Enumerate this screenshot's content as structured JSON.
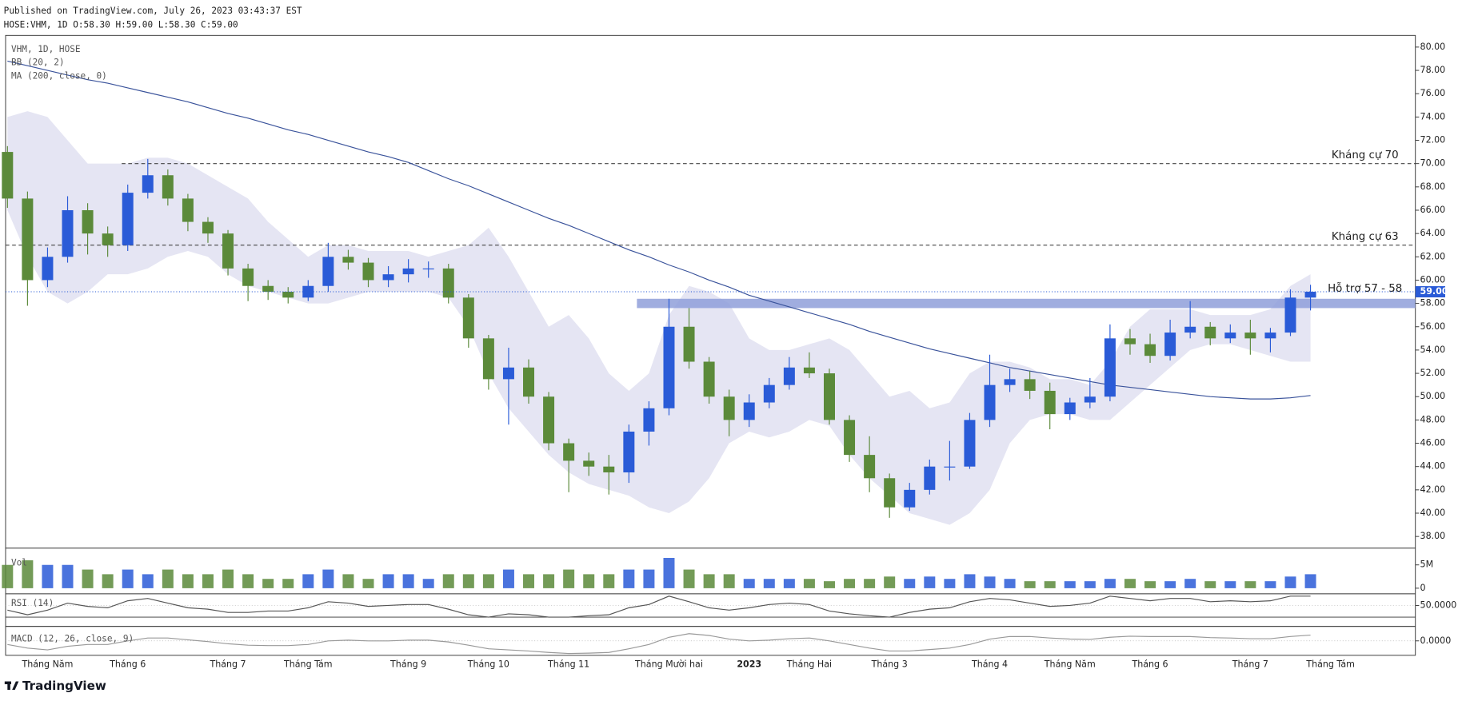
{
  "header": {
    "published": "Published on TradingView.com, July 26, 2023 03:43:37 EST",
    "ohlc": "HOSE:VHM, 1D O:58.30 H:59.00 L:58.30 C:59.00"
  },
  "footer": {
    "brand": "TradingView"
  },
  "chart_data": [
    {
      "type": "candlestick",
      "indicator_labels": [
        "VHM, 1D, HOSE",
        "BB (20, 2)",
        "MA (200, close, 0)"
      ],
      "categories": [
        null,
        null,
        "Tháng Năm",
        null,
        null,
        null,
        "Tháng 6",
        null,
        null,
        null,
        null,
        "Tháng 7",
        null,
        null,
        null,
        "Tháng Tám",
        null,
        null,
        null,
        null,
        "Tháng 9",
        null,
        null,
        null,
        "Tháng 10",
        null,
        null,
        null,
        "Tháng 11",
        null,
        null,
        null,
        null,
        "Tháng Mười hai",
        null,
        null,
        null,
        "2023",
        null,
        null,
        "Tháng Hai",
        null,
        null,
        null,
        "Tháng 3",
        null,
        null,
        null,
        null,
        "Tháng 4",
        null,
        null,
        null,
        "Tháng Năm",
        null,
        null,
        null,
        "Tháng 6",
        null,
        null,
        null,
        null,
        "Tháng 7",
        null,
        null,
        null,
        "Tháng Tám"
      ],
      "open": [
        71,
        67,
        60,
        62,
        66,
        64,
        63,
        67.5,
        69,
        67,
        65,
        64,
        61,
        59.5,
        59,
        58.5,
        59.5,
        62,
        61.5,
        60,
        60.5,
        61,
        61,
        58.5,
        55,
        51.5,
        52.5,
        50,
        46,
        44.5,
        44,
        43.5,
        47,
        49,
        56,
        53,
        50,
        48,
        49.5,
        51,
        52.5,
        52,
        48,
        45,
        43,
        40.5,
        42,
        44,
        44,
        48,
        51,
        51.5,
        50.5,
        48.5,
        49.5,
        50,
        55,
        54.5,
        53.5,
        55.5,
        56,
        55,
        55.5,
        55,
        55.5,
        58.5,
        null
      ],
      "high": [
        71.5,
        67.6,
        62.8,
        67.2,
        66.6,
        64.6,
        68.2,
        70.4,
        69.5,
        67.4,
        65.4,
        64.3,
        61.4,
        60,
        59.4,
        60,
        63.2,
        62.6,
        61.9,
        61.2,
        61.8,
        61.6,
        61.4,
        58.8,
        55.3,
        54.2,
        53.2,
        50.4,
        46.4,
        45.2,
        45,
        47.6,
        49.6,
        58.4,
        57.6,
        53.4,
        50.6,
        50.2,
        51.6,
        53.4,
        53.8,
        52.4,
        48.4,
        46.6,
        43.4,
        42.6,
        44.6,
        46.2,
        48.6,
        53.6,
        52.4,
        52.2,
        51.2,
        49.9,
        51.6,
        56.2,
        55.8,
        55.4,
        56.6,
        58.2,
        56.4,
        56.2,
        56.6,
        55.9,
        59.2,
        59.6,
        null
      ],
      "low": [
        66.2,
        57.8,
        59.4,
        61.5,
        62.2,
        62,
        62.5,
        67,
        66.4,
        64.2,
        63.2,
        60.4,
        58.2,
        58.3,
        58,
        58.2,
        59,
        60.9,
        59.4,
        59.4,
        59.8,
        60.2,
        58,
        54.2,
        50.6,
        47.6,
        49.4,
        45.4,
        41.8,
        43.2,
        41.6,
        42.6,
        45.8,
        48.4,
        52.4,
        49.4,
        46.6,
        47.4,
        49,
        50.6,
        51.6,
        47.6,
        44.4,
        41.8,
        39.6,
        40.2,
        41.6,
        42.8,
        43.8,
        47.4,
        50.4,
        49.8,
        47.2,
        48,
        49,
        49.6,
        53.6,
        52.9,
        53.1,
        55,
        54.4,
        54.6,
        53.6,
        53.8,
        55.2,
        57.4,
        null
      ],
      "close": [
        67,
        60,
        62,
        66,
        64,
        63,
        67.5,
        69,
        67,
        65,
        64,
        61,
        59.5,
        59,
        58.5,
        59.5,
        62,
        61.5,
        60,
        60.5,
        61,
        61,
        58.5,
        55,
        51.5,
        52.5,
        50,
        46,
        44.5,
        44,
        43.5,
        47,
        49,
        56,
        53,
        50,
        48,
        49.5,
        51,
        52.5,
        52,
        48,
        45,
        43,
        40.5,
        42,
        44,
        44,
        48,
        51,
        51.5,
        50.5,
        48.5,
        49.5,
        50,
        55,
        54.5,
        53.5,
        55.5,
        56,
        55,
        55.5,
        55,
        55.5,
        58.5,
        59,
        null
      ],
      "up_color": "#2a5bd7",
      "down_color": "#5b8a3a",
      "ma": {
        "color": "#3a539b",
        "values": [
          78.8,
          78.4,
          78.0,
          77.6,
          77.2,
          76.9,
          76.5,
          76.1,
          75.7,
          75.3,
          74.8,
          74.3,
          73.9,
          73.4,
          72.9,
          72.5,
          72.0,
          71.5,
          71.0,
          70.6,
          70.1,
          69.4,
          68.7,
          68.1,
          67.4,
          66.7,
          66.0,
          65.3,
          64.7,
          64.0,
          63.3,
          62.6,
          62.0,
          61.3,
          60.7,
          60.0,
          59.4,
          58.7,
          58.2,
          57.7,
          57.2,
          56.7,
          56.2,
          55.6,
          55.1,
          54.6,
          54.1,
          53.7,
          53.3,
          52.9,
          52.5,
          52.2,
          51.9,
          51.6,
          51.3,
          51.0,
          50.8,
          50.6,
          50.4,
          50.2,
          50.0,
          49.9,
          49.8,
          49.8,
          49.9,
          50.1,
          null
        ]
      },
      "bb": {
        "color": "#dcdcef",
        "upper": [
          74,
          74.5,
          74,
          72,
          70,
          70,
          70,
          70.5,
          70.5,
          70,
          69,
          68,
          67,
          65,
          63.5,
          62,
          63,
          63,
          62.5,
          62.5,
          62.5,
          62,
          62.5,
          63,
          64.5,
          62,
          59,
          56,
          57,
          55,
          52,
          50.5,
          52,
          57,
          59.5,
          59,
          58,
          55,
          54,
          54,
          54.5,
          55,
          54,
          52,
          50,
          50.5,
          49,
          49.5,
          52,
          53,
          53,
          52.5,
          51.5,
          51.5,
          51,
          53,
          56,
          57.5,
          57.5,
          57.5,
          57,
          57,
          57,
          57.5,
          59.5,
          60.5,
          null
        ],
        "lower": [
          66,
          62,
          59,
          58,
          59,
          60.5,
          60.5,
          61,
          62,
          62.5,
          62,
          60.5,
          59.5,
          59,
          58.5,
          58,
          58,
          58.5,
          59,
          59,
          59,
          59,
          58.5,
          56,
          52,
          49,
          47,
          45,
          43.5,
          42.5,
          42,
          41.5,
          40.5,
          40,
          41,
          43,
          46,
          47,
          46.5,
          47,
          48,
          47.5,
          45,
          43,
          41.5,
          40,
          39.5,
          39,
          40,
          42,
          46,
          48,
          48.5,
          48.5,
          48,
          48,
          49.5,
          51,
          52.5,
          54,
          54.5,
          54.5,
          54,
          53.5,
          53,
          53,
          null
        ]
      },
      "levels": [
        {
          "value": 70,
          "label": "Kháng cự 70"
        },
        {
          "value": 63,
          "label": "Kháng cự 63"
        }
      ],
      "zone": {
        "low": 57.6,
        "high": 58.4,
        "label": "Hỗ trợ 57 - 58",
        "color": "#8f9fd9"
      },
      "last_price": {
        "value": 59,
        "label": "59.00"
      },
      "ylim": [
        37,
        81
      ],
      "yticks": [
        {
          "value": 38,
          "label": "38.00"
        },
        {
          "value": 40,
          "label": "40.00"
        },
        {
          "value": 42,
          "label": "42.00"
        },
        {
          "value": 44,
          "label": "44.00"
        },
        {
          "value": 46,
          "label": "46.00"
        },
        {
          "value": 48,
          "label": "48.00"
        },
        {
          "value": 50,
          "label": "50.00"
        },
        {
          "value": 52,
          "label": "52.00"
        },
        {
          "value": 54,
          "label": "54.00"
        },
        {
          "value": 56,
          "label": "56.00"
        },
        {
          "value": 58,
          "label": "58.00"
        },
        {
          "value": 60,
          "label": "60.00"
        },
        {
          "value": 62,
          "label": "62.00"
        },
        {
          "value": 64,
          "label": "64.00"
        },
        {
          "value": 66,
          "label": "66.00"
        },
        {
          "value": 68,
          "label": "68.00"
        },
        {
          "value": 70,
          "label": "70.00"
        },
        {
          "value": 72,
          "label": "72.00"
        },
        {
          "value": 74,
          "label": "74.00"
        },
        {
          "value": 76,
          "label": "76.00"
        },
        {
          "value": 78,
          "label": "78.00"
        },
        {
          "value": 80,
          "label": "80.00"
        }
      ]
    },
    {
      "type": "bar",
      "title": "Vol",
      "values": [
        5000000,
        6000000,
        5000000,
        5000000,
        4000000,
        3000000,
        4000000,
        3000000,
        4000000,
        3000000,
        3000000,
        4000000,
        3000000,
        2000000,
        2000000,
        3000000,
        4000000,
        3000000,
        2000000,
        3000000,
        3000000,
        2000000,
        3000000,
        3000000,
        3000000,
        4000000,
        3000000,
        3000000,
        4000000,
        3000000,
        3000000,
        4000000,
        4000000,
        6500000,
        4000000,
        3000000,
        3000000,
        2000000,
        2000000,
        2000000,
        2000000,
        1500000,
        2000000,
        2000000,
        2500000,
        2000000,
        2500000,
        2000000,
        3000000,
        2500000,
        2000000,
        1500000,
        1500000,
        1500000,
        1500000,
        2000000,
        2000000,
        1500000,
        1500000,
        2000000,
        1500000,
        1500000,
        1500000,
        1500000,
        2500000,
        3000000,
        null
      ],
      "ylim": [
        0,
        8600000
      ],
      "yticks": [
        {
          "value": 5000000,
          "label": "5M"
        },
        0
      ]
    },
    {
      "type": "line",
      "title": "RSI (14)",
      "color": "#555555",
      "values": [
        40,
        30,
        40,
        55,
        48,
        45,
        60,
        65,
        55,
        45,
        42,
        35,
        35,
        38,
        38,
        45,
        58,
        55,
        48,
        50,
        52,
        52,
        42,
        30,
        25,
        32,
        30,
        25,
        25,
        28,
        30,
        45,
        52,
        70,
        58,
        45,
        40,
        45,
        52,
        55,
        52,
        38,
        32,
        28,
        25,
        35,
        42,
        45,
        58,
        65,
        62,
        55,
        48,
        50,
        55,
        70,
        65,
        60,
        65,
        65,
        58,
        60,
        58,
        60,
        70,
        70,
        null
      ],
      "ylim": [
        25,
        75
      ],
      "yticks": [
        {
          "value": 50,
          "label": "50.0000"
        }
      ]
    },
    {
      "type": "line",
      "title": "MACD (12, 26, close, 9)",
      "color": "#999999",
      "values": [
        -1,
        -2,
        -2.5,
        -1.5,
        -1,
        -1,
        0,
        0.8,
        0.8,
        0.3,
        -0.2,
        -0.8,
        -1.2,
        -1.3,
        -1.3,
        -1,
        0,
        0.2,
        0,
        0,
        0.2,
        0.2,
        -0.3,
        -1.2,
        -2.2,
        -2.5,
        -2.8,
        -3.2,
        -3.5,
        -3.4,
        -3.2,
        -2.2,
        -1,
        1,
        2,
        1.5,
        0.5,
        0,
        0.2,
        0.6,
        0.8,
        0,
        -1,
        -2,
        -2.8,
        -2.8,
        -2.4,
        -2,
        -1,
        0.5,
        1.2,
        1.2,
        0.8,
        0.5,
        0.4,
        1,
        1.3,
        1.2,
        1.2,
        1.2,
        0.9,
        0.8,
        0.6,
        0.6,
        1.2,
        1.6,
        null
      ],
      "ylim": [
        -4,
        4
      ],
      "yticks": [
        {
          "value": 0,
          "label": "0.0000"
        }
      ]
    }
  ]
}
